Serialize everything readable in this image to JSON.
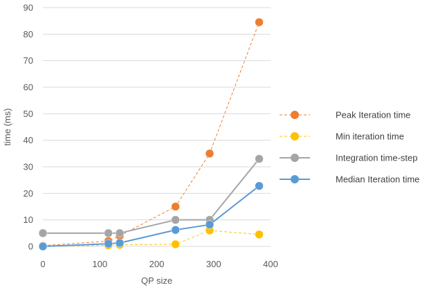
{
  "chart_data": {
    "type": "line",
    "title": "",
    "xlabel": "QP size",
    "ylabel": "time (ms)",
    "xlim": [
      0,
      400
    ],
    "ylim": [
      0,
      90
    ],
    "xticks": [
      0,
      100,
      200,
      300,
      400
    ],
    "yticks": [
      0,
      10,
      20,
      30,
      40,
      50,
      60,
      70,
      80,
      90
    ],
    "grid": "horizontal",
    "legend_position": "right",
    "series": [
      {
        "name": "Peak Iteration time",
        "color": "#ED7D31",
        "dashed": true,
        "line_width": 1,
        "points": [
          [
            0,
            0.3
          ],
          [
            115,
            2
          ],
          [
            135,
            4
          ],
          [
            233,
            15
          ],
          [
            293,
            35
          ],
          [
            380,
            84.5
          ]
        ]
      },
      {
        "name": "Min iteration time",
        "color": "#FFC000",
        "dashed": true,
        "line_width": 1,
        "points": [
          [
            0,
            0.1
          ],
          [
            115,
            0.4
          ],
          [
            135,
            0.6
          ],
          [
            233,
            0.8
          ],
          [
            293,
            6
          ],
          [
            380,
            4.5
          ]
        ]
      },
      {
        "name": "Integration time-step",
        "color": "#A5A5A5",
        "dashed": false,
        "line_width": 2,
        "points": [
          [
            0,
            5
          ],
          [
            115,
            5
          ],
          [
            135,
            5
          ],
          [
            233,
            10
          ],
          [
            293,
            10
          ],
          [
            380,
            33
          ]
        ]
      },
      {
        "name": "Median Iteration time",
        "color": "#5B9BD5",
        "dashed": false,
        "line_width": 2,
        "points": [
          [
            0,
            0
          ],
          [
            115,
            1
          ],
          [
            135,
            1.3
          ],
          [
            233,
            6.2
          ],
          [
            293,
            8.2
          ],
          [
            380,
            22.8
          ]
        ]
      }
    ]
  }
}
